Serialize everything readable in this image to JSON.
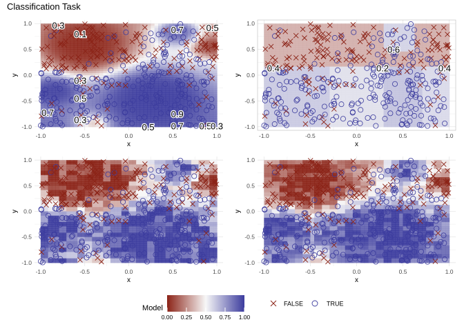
{
  "title": "Classification Task",
  "legend": {
    "model_title": "Model",
    "model_ticks": [
      "0.00",
      "0.25",
      "0.50",
      "0.75",
      "1.00"
    ],
    "false_label": "FALSE",
    "true_label": "TRUE"
  },
  "colors": {
    "low": "#8b2317",
    "mid": "#f7f7f7",
    "high": "#3c3c9e",
    "grid": "#e6e6e6",
    "axis_text": "#4d4d4d"
  },
  "chart_data": [
    {
      "type": "scatter",
      "panel": "top-left",
      "background": "smooth probability surface with contour labels",
      "xlabel": "x",
      "ylabel": "y",
      "xlim": [
        -1,
        1
      ],
      "ylim": [
        -1,
        1
      ],
      "x_ticks": [
        "-1.0",
        "-0.5",
        "0.0",
        "0.5",
        "1.0"
      ],
      "y_ticks": [
        "-1.0",
        "-0.5",
        "0.0",
        "0.5",
        "1.0"
      ],
      "contour_labels": [
        {
          "text": "0.3",
          "x": -0.8,
          "y": 0.97
        },
        {
          "text": "0.1",
          "x": -0.55,
          "y": 0.8
        },
        {
          "text": "0.7",
          "x": 0.55,
          "y": 0.88
        },
        {
          "text": "0.5",
          "x": 0.95,
          "y": 0.92
        },
        {
          "text": "0.3",
          "x": -0.55,
          "y": -0.1
        },
        {
          "text": "0.5",
          "x": -0.55,
          "y": -0.45
        },
        {
          "text": "0.7",
          "x": -0.92,
          "y": -0.72
        },
        {
          "text": "0.3",
          "x": -0.55,
          "y": -0.86
        },
        {
          "text": "0.9",
          "x": 0.55,
          "y": -0.75
        },
        {
          "text": "0.5",
          "x": 0.22,
          "y": -1.0
        },
        {
          "text": "0.7",
          "x": 0.55,
          "y": -0.98
        },
        {
          "text": "0.5",
          "x": 0.87,
          "y": -0.98
        },
        {
          "text": "0.3",
          "x": 1.0,
          "y": -0.98
        }
      ]
    },
    {
      "type": "scatter",
      "panel": "top-right",
      "background": "rectangular partitions with region probability labels",
      "xlabel": "x",
      "ylabel": "y",
      "xlim": [
        -1,
        1
      ],
      "ylim": [
        -1,
        1
      ],
      "x_ticks": [
        "-1.0",
        "-0.5",
        "0.0",
        "0.5",
        "1.0"
      ],
      "y_ticks": [
        "-1.0",
        "-0.5",
        "0.0",
        "0.5",
        "1.0"
      ],
      "region_labels": [
        {
          "text": "0.6",
          "x": 0.4,
          "y": 0.5
        },
        {
          "text": "0.4",
          "x": -0.9,
          "y": 0.14
        },
        {
          "text": "0.2",
          "x": 0.28,
          "y": 0.14
        },
        {
          "text": "0.4",
          "x": 0.95,
          "y": 0.14
        }
      ]
    },
    {
      "type": "scatter",
      "panel": "bottom-left",
      "background": "blocky probability surface",
      "xlabel": "x",
      "ylabel": "y",
      "xlim": [
        -1,
        1
      ],
      "ylim": [
        -1,
        1
      ],
      "x_ticks": [
        "-1.0",
        "-0.5",
        "0.0",
        "0.5",
        "1.0"
      ],
      "y_ticks": [
        "-1.0",
        "-0.5",
        "0.0",
        "0.5",
        "1.0"
      ]
    },
    {
      "type": "scatter",
      "panel": "bottom-right",
      "background": "blocky probability surface",
      "xlabel": "x",
      "ylabel": "y",
      "xlim": [
        -1,
        1
      ],
      "ylim": [
        -1,
        1
      ],
      "x_ticks": [
        "-1.0",
        "-0.5",
        "0.0",
        "0.5",
        "1.0"
      ],
      "y_ticks": [
        "-1.0",
        "-0.5",
        "0.0",
        "0.5",
        "1.0"
      ]
    }
  ]
}
